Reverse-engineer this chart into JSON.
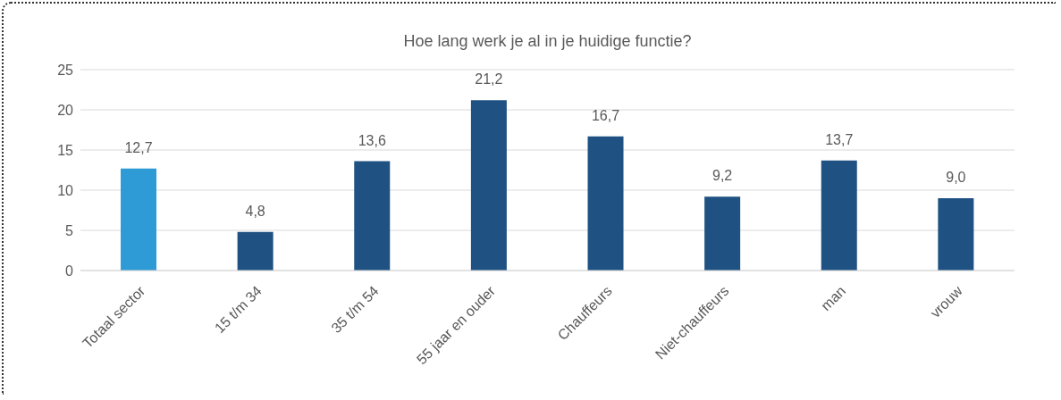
{
  "chart_data": {
    "type": "bar",
    "title": "Hoe lang werk je al in je huidige functie?",
    "categories": [
      "Totaal sector",
      "15 t/m 34",
      "35 t/m 54",
      "55 jaar en ouder",
      "Chauffeurs",
      "Niet-chauffeurs",
      "man",
      "vrouw"
    ],
    "values": [
      12.7,
      4.8,
      13.6,
      21.2,
      16.7,
      9.2,
      13.7,
      9.0
    ],
    "colors": [
      "#2e9bd6",
      "#1f5282",
      "#1f5282",
      "#1f5282",
      "#1f5282",
      "#1f5282",
      "#1f5282",
      "#1f5282"
    ],
    "value_labels": [
      "12,7",
      "4,8",
      "13,6",
      "21,2",
      "16,7",
      "9,2",
      "13,7",
      "9,0"
    ],
    "ylim": [
      0,
      25
    ],
    "yticks": [
      0,
      5,
      10,
      15,
      20,
      25
    ],
    "grid": "y"
  }
}
